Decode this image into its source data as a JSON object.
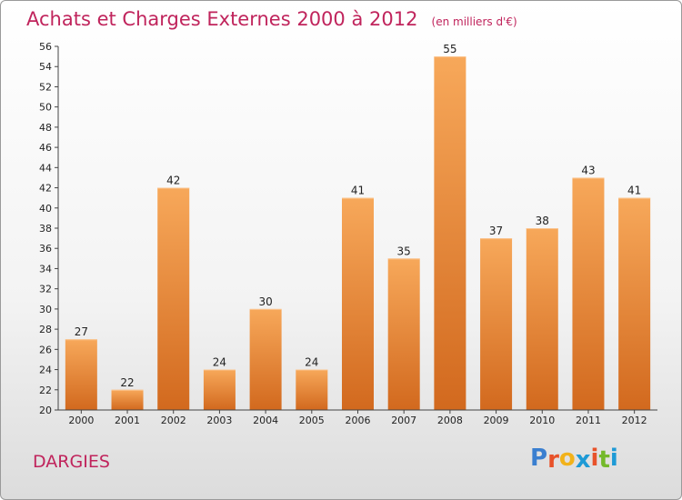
{
  "header": {
    "title": "Achats et Charges Externes 2000 à 2012",
    "unit": "(en milliers d'€)"
  },
  "footer": {
    "commune": "DARGIES",
    "logo_letters": [
      "P",
      "r",
      "o",
      "x",
      "i",
      "t",
      "i"
    ],
    "logo_colors": [
      "#3a7fd0",
      "#e8522a",
      "#f2b21a",
      "#1e9ad6",
      "#e8522a",
      "#74b92b",
      "#1e9ad6"
    ]
  },
  "chart_data": {
    "type": "bar",
    "title": "Achats et Charges Externes 2000 à 2012",
    "categories": [
      "2000",
      "2001",
      "2002",
      "2003",
      "2004",
      "2005",
      "2006",
      "2007",
      "2008",
      "2009",
      "2010",
      "2011",
      "2012"
    ],
    "values": [
      27,
      22,
      42,
      24,
      30,
      24,
      41,
      35,
      55,
      37,
      38,
      43,
      41
    ],
    "ylim": [
      20,
      56
    ],
    "ytick_step": 2,
    "grid": false,
    "bar_color_top": "#f7a85a",
    "bar_color_bottom": "#d2691e"
  }
}
